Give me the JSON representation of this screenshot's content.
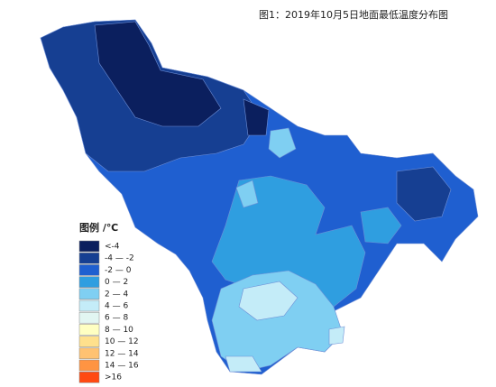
{
  "header": {
    "title": "图1：2019年10月5日地面最低温度分布图"
  },
  "legend": {
    "title": "图例 /℃",
    "items": [
      {
        "label": "<-4",
        "color": "#0b1f5e"
      },
      {
        "label": "-4 — -2",
        "color": "#163f92"
      },
      {
        "label": "-2 — 0",
        "color": "#1f5fd0"
      },
      {
        "label": "0 — 2",
        "color": "#2f9ee0"
      },
      {
        "label": "2 — 4",
        "color": "#7fcff2"
      },
      {
        "label": "4 — 6",
        "color": "#c4ecf8"
      },
      {
        "label": "6 — 8",
        "color": "#e2f6f2"
      },
      {
        "label": "8 — 10",
        "color": "#ffffc2"
      },
      {
        "label": "10 — 12",
        "color": "#ffe08c"
      },
      {
        "label": "12 — 14",
        "color": "#ffc272"
      },
      {
        "label": "14 — 16",
        "color": "#ff9442"
      },
      {
        "label": ">16",
        "color": "#ff4a12"
      }
    ]
  }
}
